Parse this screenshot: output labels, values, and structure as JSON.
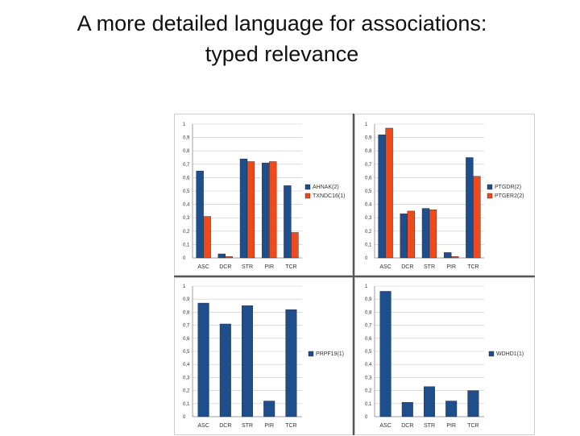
{
  "slide": {
    "title_line1": "A more detailed language for associations:",
    "title_line2": "typed relevance"
  },
  "colors": {
    "blue": "#1f4e8c",
    "orange": "#f04a1c",
    "grid": "#c8c8c8"
  },
  "chart_data": [
    {
      "type": "bar",
      "categories": [
        "ASC",
        "DCR",
        "STR",
        "PIR",
        "TCR"
      ],
      "yticks": [
        "0",
        "0,1",
        "0,2",
        "0,3",
        "0,4",
        "0,5",
        "0,6",
        "0,7",
        "0,8",
        "0,9",
        "1"
      ],
      "ylim": [
        0,
        1
      ],
      "grid": true,
      "legend_position": "right",
      "series": [
        {
          "name": "AHNAK(2)",
          "color": "#1f4e8c",
          "values": [
            0.65,
            0.03,
            0.74,
            0.71,
            0.54
          ]
        },
        {
          "name": "TXNDC16(1)",
          "color": "#f04a1c",
          "values": [
            0.31,
            0.01,
            0.72,
            0.72,
            0.19
          ]
        }
      ]
    },
    {
      "type": "bar",
      "categories": [
        "ASC",
        "DCR",
        "STR",
        "PIR",
        "TCR"
      ],
      "yticks": [
        "0",
        "0,1",
        "0,2",
        "0,3",
        "0,4",
        "0,5",
        "0,6",
        "0,7",
        "0,8",
        "0,9",
        "1"
      ],
      "ylim": [
        0,
        1
      ],
      "grid": true,
      "legend_position": "right",
      "series": [
        {
          "name": "PTGDR(2)",
          "color": "#1f4e8c",
          "values": [
            0.92,
            0.33,
            0.37,
            0.04,
            0.75
          ]
        },
        {
          "name": "PTGER2(2)",
          "color": "#f04a1c",
          "values": [
            0.97,
            0.35,
            0.36,
            0.01,
            0.61
          ]
        }
      ]
    },
    {
      "type": "bar",
      "categories": [
        "ASC",
        "DCR",
        "STR",
        "PIR",
        "TCR"
      ],
      "yticks": [
        "0",
        "0,1",
        "0,2",
        "0,3",
        "0,4",
        "0,5",
        "0,6",
        "0,7",
        "0,8",
        "0,9",
        "1"
      ],
      "ylim": [
        0,
        1
      ],
      "grid": true,
      "legend_position": "right",
      "series": [
        {
          "name": "PRPF19(1)",
          "color": "#1f4e8c",
          "values": [
            0.87,
            0.71,
            0.85,
            0.12,
            0.82
          ]
        }
      ]
    },
    {
      "type": "bar",
      "categories": [
        "ASC",
        "DCR",
        "STR",
        "PIR",
        "TCR"
      ],
      "yticks": [
        "0",
        "0,1",
        "0,2",
        "0,3",
        "0,4",
        "0,5",
        "0,6",
        "0,7",
        "0,8",
        "0,9",
        "1"
      ],
      "ylim": [
        0,
        1
      ],
      "grid": true,
      "legend_position": "right",
      "series": [
        {
          "name": "WDHD1(1)",
          "color": "#1f4e8c",
          "values": [
            0.96,
            0.11,
            0.23,
            0.12,
            0.2
          ]
        }
      ]
    }
  ]
}
